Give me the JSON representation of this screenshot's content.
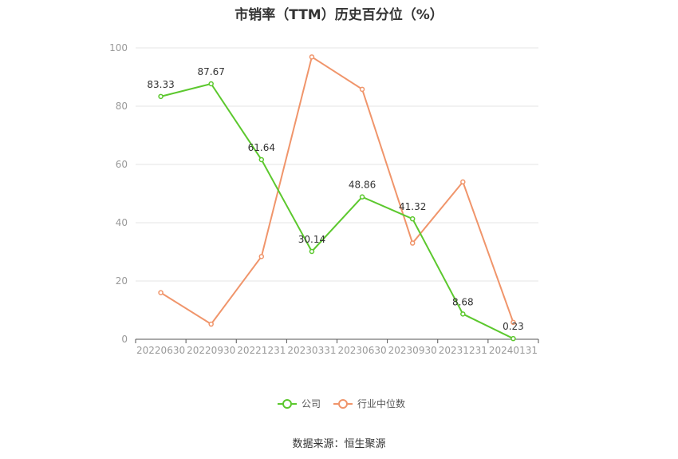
{
  "title": "市销率（TTM）历史百分位（%）",
  "source": "数据来源：恒生聚源",
  "chart_data": {
    "type": "line",
    "title": "市销率（TTM）历史百分位（%）",
    "categories": [
      "20220630",
      "20220930",
      "20221231",
      "20230331",
      "20230630",
      "20230930",
      "20231231",
      "20240131"
    ],
    "ylim": [
      0,
      100
    ],
    "yticks": [
      0,
      20,
      40,
      60,
      80,
      100
    ],
    "grid": true,
    "legend_position": "bottom",
    "series": [
      {
        "name": "公司",
        "color": "#5cc82e",
        "values": [
          83.33,
          87.67,
          61.64,
          30.14,
          48.86,
          41.32,
          8.68,
          0.23
        ],
        "labels": [
          "83.33",
          "87.67",
          "61.64",
          "30.14",
          "48.86",
          "41.32",
          "8.68",
          "0.23"
        ]
      },
      {
        "name": "行业中位数",
        "color": "#f0956b",
        "values": [
          16.0,
          5.2,
          28.4,
          96.9,
          85.8,
          33.0,
          54.0,
          5.8
        ]
      }
    ]
  }
}
